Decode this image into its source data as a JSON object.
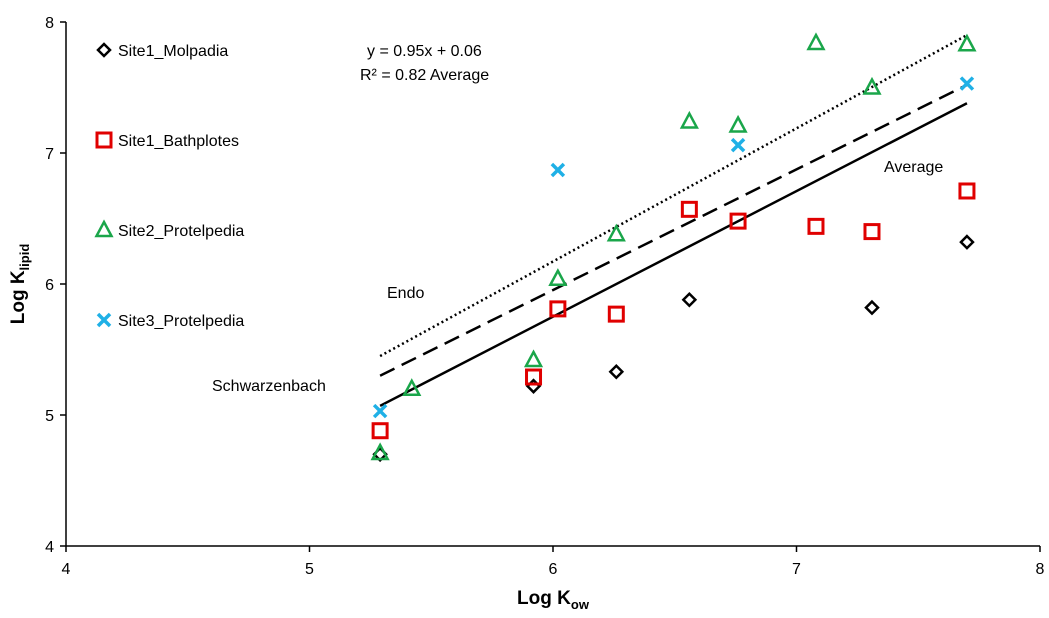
{
  "chart_data": {
    "type": "scatter",
    "xlabel": "Log K",
    "xlabel_sub": "ow",
    "ylabel": "Log K",
    "ylabel_sub": "lipid",
    "xlim": [
      4,
      8
    ],
    "ylim": [
      4,
      8
    ],
    "x_ticks": [
      "4",
      "5",
      "6",
      "7",
      "8"
    ],
    "y_ticks": [
      "4",
      "5",
      "6",
      "7",
      "8"
    ],
    "grid": false,
    "legend_position": "left",
    "series": [
      {
        "name": "Site1_Molpadia",
        "marker": "diamond",
        "color": "#000000",
        "points": [
          [
            5.29,
            4.7
          ],
          [
            5.92,
            5.22
          ],
          [
            6.26,
            5.33
          ],
          [
            6.56,
            5.88
          ],
          [
            7.31,
            5.82
          ],
          [
            7.7,
            6.32
          ]
        ]
      },
      {
        "name": "Site1_Bathplotes",
        "marker": "square",
        "color": "#e00000",
        "points": [
          [
            5.29,
            4.88
          ],
          [
            5.92,
            5.29
          ],
          [
            6.02,
            5.81
          ],
          [
            6.26,
            5.77
          ],
          [
            6.56,
            6.57
          ],
          [
            6.76,
            6.48
          ],
          [
            7.08,
            6.44
          ],
          [
            7.31,
            6.4
          ],
          [
            7.7,
            6.71
          ]
        ]
      },
      {
        "name": "Site2_Protelpedia",
        "marker": "triangle",
        "color": "#1aa64a",
        "points": [
          [
            5.29,
            4.71
          ],
          [
            5.42,
            5.2
          ],
          [
            5.92,
            5.42
          ],
          [
            6.02,
            6.04
          ],
          [
            6.26,
            6.38
          ],
          [
            6.56,
            7.24
          ],
          [
            6.76,
            7.21
          ],
          [
            7.08,
            7.84
          ],
          [
            7.31,
            7.5
          ],
          [
            7.7,
            7.83
          ]
        ]
      },
      {
        "name": "Site3_Protelpedia",
        "marker": "x",
        "color": "#1fb0e6",
        "points": [
          [
            5.29,
            5.03
          ],
          [
            6.02,
            6.87
          ],
          [
            6.76,
            7.06
          ],
          [
            7.7,
            7.53
          ]
        ]
      }
    ],
    "lines": [
      {
        "label": "Endo",
        "style": "dotted",
        "x": [
          5.29,
          7.7
        ],
        "y": [
          5.45,
          7.9
        ]
      },
      {
        "label": "",
        "style": "dashed",
        "x": [
          5.29,
          7.7
        ],
        "y": [
          5.3,
          7.52
        ]
      },
      {
        "label": "Schwarzenbach",
        "style": "solid",
        "x": [
          5.29,
          7.7
        ],
        "y": [
          5.07,
          7.38
        ]
      }
    ],
    "annotations": {
      "equation": "y = 0.95x + 0.06",
      "r_squared": "R² = 0.82 Average",
      "average": "Average",
      "endo": "Endo",
      "schwarzenbach": "Schwarzenbach"
    }
  }
}
